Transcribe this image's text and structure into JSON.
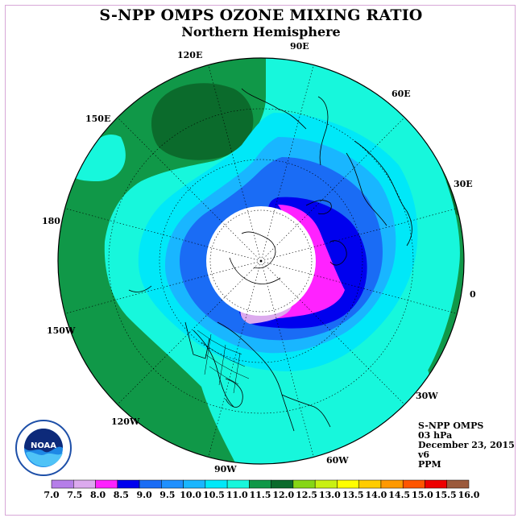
{
  "title": "S-NPP OMPS OZONE MIXING RATIO",
  "subtitle": "Northern Hemisphere",
  "longitude_labels": [
    {
      "text": "90E"
    },
    {
      "text": "60E"
    },
    {
      "text": "30E"
    },
    {
      "text": "0"
    },
    {
      "text": "30W"
    },
    {
      "text": "60W"
    },
    {
      "text": "90W"
    },
    {
      "text": "120W"
    },
    {
      "text": "150W"
    },
    {
      "text": "180"
    },
    {
      "text": "150E"
    },
    {
      "text": "120E"
    }
  ],
  "info": {
    "instrument": "S-NPP OMPS",
    "level": "03 hPa",
    "date": "December 23, 2015",
    "version": "v6",
    "units": "PPM"
  },
  "logo": {
    "text": "NOAA",
    "icon": "noaa-logo-icon"
  },
  "colorbar": {
    "labels": [
      "7.0",
      "7.5",
      "8.0",
      "8.5",
      "9.0",
      "9.5",
      "10.0",
      "10.5",
      "11.0",
      "11.5",
      "12.0",
      "12.5",
      "13.0",
      "13.5",
      "14.0",
      "14.5",
      "15.0",
      "15.5",
      "16.0"
    ],
    "colors": [
      "#b57ee8",
      "#dcaaee",
      "#ff22ff",
      "#0000ee",
      "#1a6cf5",
      "#1e90ff",
      "#19b6ff",
      "#00e8f8",
      "#17f7dc",
      "#109848",
      "#0b6b2c",
      "#86d615",
      "#c9f012",
      "#ffff00",
      "#ffcc00",
      "#ff9900",
      "#ff5500",
      "#ee0000",
      "#9b5a3c"
    ]
  },
  "map_colors": {
    "dark_green": "#0b6b2c",
    "green": "#109848",
    "aqua": "#17f7dc",
    "cyan": "#00e8f8",
    "sky": "#19b6ff",
    "blue": "#1a6cf5",
    "deep_blue": "#0000ee",
    "magenta": "#ff22ff",
    "lavender": "#dcaaee",
    "polar_night": "#ffffff"
  }
}
